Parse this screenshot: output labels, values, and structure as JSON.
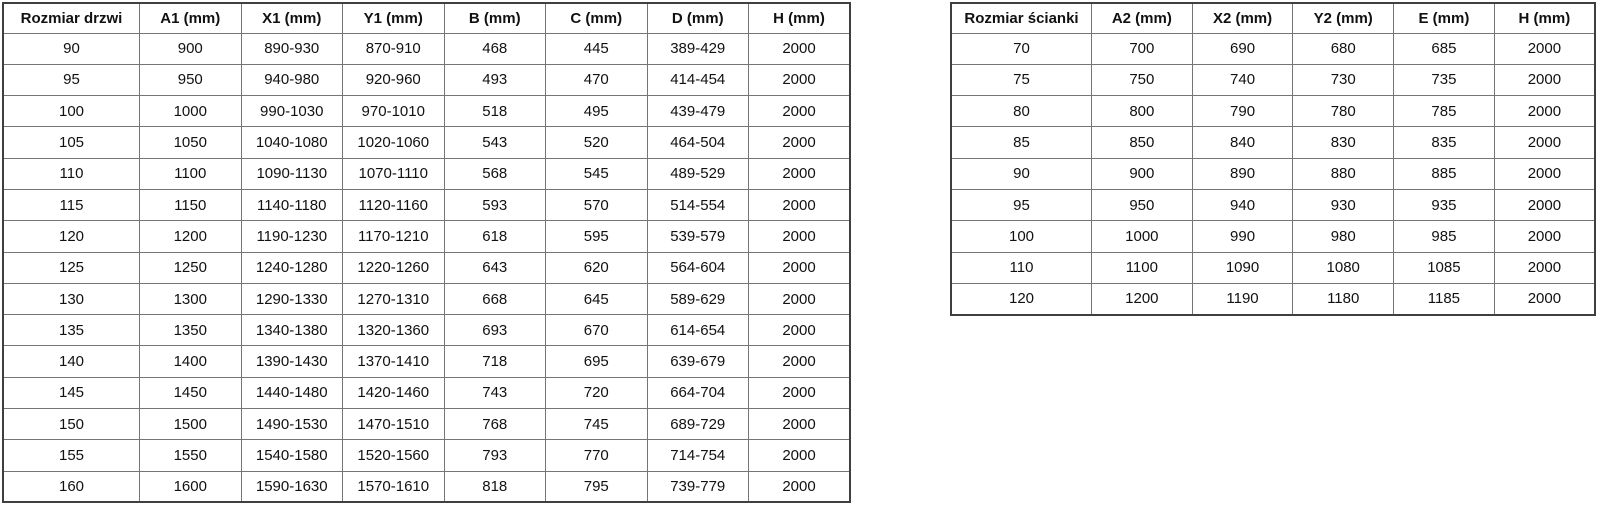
{
  "tables": [
    {
      "title": "door-size-table",
      "headers": [
        "Rozmiar drzwi",
        "A1 (mm)",
        "X1 (mm)",
        "Y1 (mm)",
        "B (mm)",
        "C (mm)",
        "D (mm)",
        "H (mm)"
      ],
      "rows": [
        [
          "90",
          "900",
          "890-930",
          "870-910",
          "468",
          "445",
          "389-429",
          "2000"
        ],
        [
          "95",
          "950",
          "940-980",
          "920-960",
          "493",
          "470",
          "414-454",
          "2000"
        ],
        [
          "100",
          "1000",
          "990-1030",
          "970-1010",
          "518",
          "495",
          "439-479",
          "2000"
        ],
        [
          "105",
          "1050",
          "1040-1080",
          "1020-1060",
          "543",
          "520",
          "464-504",
          "2000"
        ],
        [
          "110",
          "1100",
          "1090-1130",
          "1070-1110",
          "568",
          "545",
          "489-529",
          "2000"
        ],
        [
          "115",
          "1150",
          "1140-1180",
          "1120-1160",
          "593",
          "570",
          "514-554",
          "2000"
        ],
        [
          "120",
          "1200",
          "1190-1230",
          "1170-1210",
          "618",
          "595",
          "539-579",
          "2000"
        ],
        [
          "125",
          "1250",
          "1240-1280",
          "1220-1260",
          "643",
          "620",
          "564-604",
          "2000"
        ],
        [
          "130",
          "1300",
          "1290-1330",
          "1270-1310",
          "668",
          "645",
          "589-629",
          "2000"
        ],
        [
          "135",
          "1350",
          "1340-1380",
          "1320-1360",
          "693",
          "670",
          "614-654",
          "2000"
        ],
        [
          "140",
          "1400",
          "1390-1430",
          "1370-1410",
          "718",
          "695",
          "639-679",
          "2000"
        ],
        [
          "145",
          "1450",
          "1440-1480",
          "1420-1460",
          "743",
          "720",
          "664-704",
          "2000"
        ],
        [
          "150",
          "1500",
          "1490-1530",
          "1470-1510",
          "768",
          "745",
          "689-729",
          "2000"
        ],
        [
          "155",
          "1550",
          "1540-1580",
          "1520-1560",
          "793",
          "770",
          "714-754",
          "2000"
        ],
        [
          "160",
          "1600",
          "1590-1630",
          "1570-1610",
          "818",
          "795",
          "739-779",
          "2000"
        ]
      ]
    },
    {
      "title": "wall-panel-size-table",
      "headers": [
        "Rozmiar ścianki",
        "A2 (mm)",
        "X2 (mm)",
        "Y2 (mm)",
        "E (mm)",
        "H (mm)"
      ],
      "rows": [
        [
          "70",
          "700",
          "690",
          "680",
          "685",
          "2000"
        ],
        [
          "75",
          "750",
          "740",
          "730",
          "735",
          "2000"
        ],
        [
          "80",
          "800",
          "790",
          "780",
          "785",
          "2000"
        ],
        [
          "85",
          "850",
          "840",
          "830",
          "835",
          "2000"
        ],
        [
          "90",
          "900",
          "890",
          "880",
          "885",
          "2000"
        ],
        [
          "95",
          "950",
          "940",
          "930",
          "935",
          "2000"
        ],
        [
          "100",
          "1000",
          "990",
          "980",
          "985",
          "2000"
        ],
        [
          "110",
          "1100",
          "1090",
          "1080",
          "1085",
          "2000"
        ],
        [
          "120",
          "1200",
          "1190",
          "1180",
          "1185",
          "2000"
        ]
      ]
    }
  ],
  "colors": {
    "background": "#ffffff",
    "text": "#111111",
    "grid_line": "#757575",
    "outer_border": "#3f3f3f"
  }
}
